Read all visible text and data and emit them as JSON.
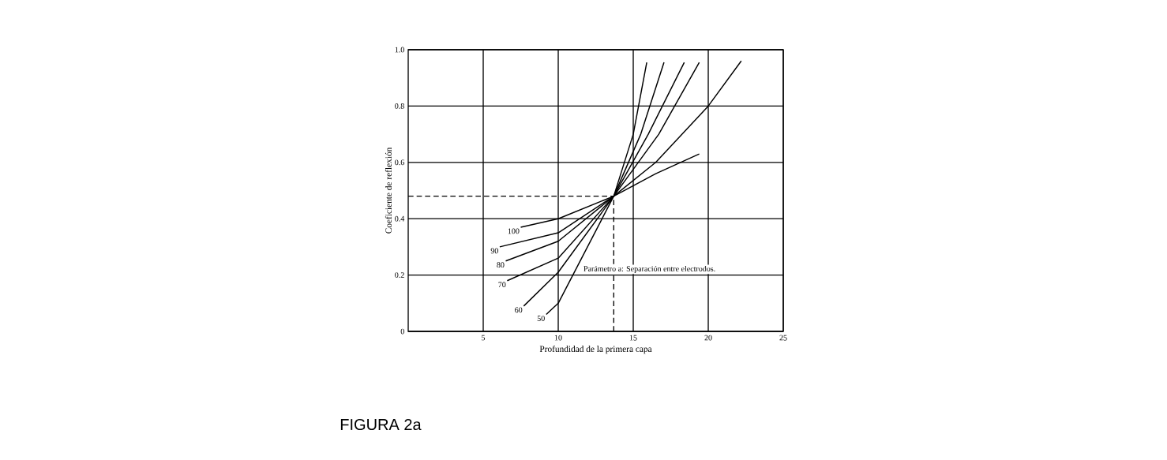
{
  "chart_data": {
    "type": "line",
    "xlabel": "Profundidad de la primera capa",
    "ylabel": "Coeficiente de reflexión",
    "xlim": [
      0,
      25
    ],
    "ylim": [
      0,
      1.0
    ],
    "xticks": [
      5,
      10,
      15,
      20,
      25
    ],
    "yticks": [
      {
        "value": 0,
        "label": "0"
      },
      {
        "value": 0.2,
        "label": "0.2"
      },
      {
        "value": 0.4,
        "label": "0.4"
      },
      {
        "value": 0.6,
        "label": "0.6"
      },
      {
        "value": 0.8,
        "label": "0.8"
      },
      {
        "value": 1.0,
        "label": "1.0"
      }
    ],
    "grid": true,
    "legend": false,
    "marker": "none",
    "line_style": "solid",
    "series": [
      {
        "name": "100",
        "color": "#000000",
        "x": [
          7.5,
          10,
          13.7,
          16.5,
          19.4
        ],
        "values": [
          0.37,
          0.4,
          0.48,
          0.56,
          0.63
        ]
      },
      {
        "name": "90",
        "color": "#000000",
        "x": [
          6.1,
          10,
          13.7,
          16.5,
          20,
          22.2
        ],
        "values": [
          0.3,
          0.35,
          0.48,
          0.6,
          0.8,
          0.96
        ]
      },
      {
        "name": "80",
        "color": "#000000",
        "x": [
          6.5,
          10,
          13.7,
          16.7,
          19.4
        ],
        "values": [
          0.25,
          0.32,
          0.48,
          0.7,
          0.955
        ]
      },
      {
        "name": "70",
        "color": "#000000",
        "x": [
          6.6,
          10,
          13.7,
          16,
          18.4
        ],
        "values": [
          0.18,
          0.26,
          0.48,
          0.7,
          0.955
        ]
      },
      {
        "name": "60",
        "color": "#000000",
        "x": [
          7.7,
          10,
          13.7,
          15.5,
          17.05
        ],
        "values": [
          0.09,
          0.21,
          0.48,
          0.7,
          0.955
        ]
      },
      {
        "name": "50",
        "color": "#000000",
        "x": [
          9.2,
          10,
          13.7,
          15,
          15.9
        ],
        "values": [
          0.06,
          0.1,
          0.48,
          0.7,
          0.955
        ]
      }
    ],
    "ref_lines": [
      {
        "axis": "y",
        "value": 0.48,
        "line_style": "dashed"
      },
      {
        "axis": "x",
        "value": 13.7,
        "line_style": "dashed"
      }
    ],
    "annotations": [
      "Parámetro a: Separación entre electrodos.",
      "FIGURA 2a"
    ]
  }
}
